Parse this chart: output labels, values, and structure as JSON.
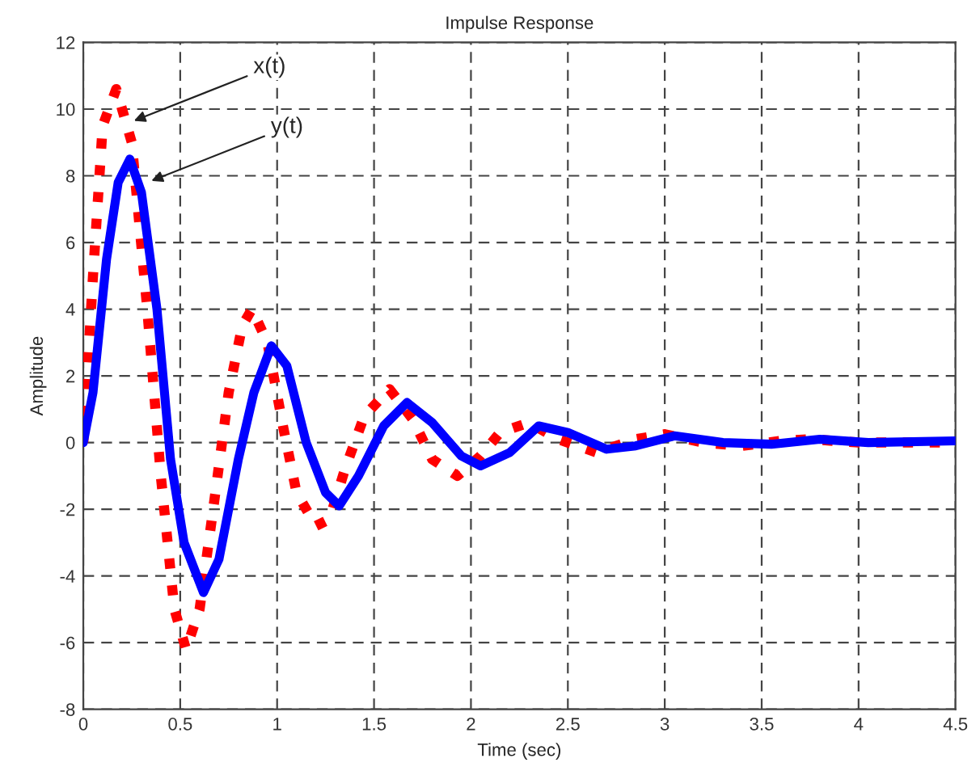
{
  "chart_data": {
    "type": "line",
    "title": "Impulse Response",
    "xlabel": "Time (sec)",
    "ylabel": "Amplitude",
    "xlim": [
      0,
      4.5
    ],
    "ylim": [
      -8,
      12
    ],
    "xticks": [
      0,
      0.5,
      1,
      1.5,
      2,
      2.5,
      3,
      3.5,
      4,
      4.5
    ],
    "yticks": [
      -8,
      -6,
      -4,
      -2,
      0,
      2,
      4,
      6,
      8,
      10,
      12
    ],
    "grid": true,
    "marker": "none",
    "annotations": [
      {
        "text": "x(t)",
        "x": 0.24,
        "y": 9.6
      },
      {
        "text": "y(t)",
        "x": 0.33,
        "y": 7.8
      }
    ],
    "series": [
      {
        "color": "#ff0000",
        "line_style": "dotted",
        "x": [
          0,
          0.05,
          0.1,
          0.17,
          0.25,
          0.33,
          0.4,
          0.47,
          0.53,
          0.6,
          0.67,
          0.75,
          0.82,
          0.87,
          0.95,
          1.03,
          1.1,
          1.2,
          1.27,
          1.35,
          1.45,
          1.58,
          1.7,
          1.8,
          1.93,
          2.05,
          2.15,
          2.3,
          2.45,
          2.65,
          2.85,
          3.0,
          3.2,
          3.4,
          3.6,
          3.75,
          4.0,
          4.25,
          4.5
        ],
        "values": [
          0,
          5,
          9.5,
          10.6,
          9,
          4,
          -1,
          -5,
          -6.2,
          -5,
          -2,
          1.5,
          3.5,
          4.0,
          3,
          0.5,
          -1.5,
          -2.5,
          -2.3,
          -0.8,
          0.8,
          1.6,
          0.7,
          -0.5,
          -1.0,
          -0.4,
          0.3,
          0.6,
          0.1,
          -0.3,
          0.1,
          0.25,
          0.0,
          -0.1,
          0.05,
          0.1,
          0.0,
          0.0,
          0.0
        ]
      },
      {
        "color": "#0000ff",
        "line_style": "solid",
        "x": [
          0,
          0.05,
          0.12,
          0.18,
          0.24,
          0.3,
          0.38,
          0.45,
          0.52,
          0.62,
          0.7,
          0.8,
          0.88,
          0.97,
          1.05,
          1.15,
          1.25,
          1.32,
          1.42,
          1.55,
          1.67,
          1.8,
          1.95,
          2.05,
          2.2,
          2.35,
          2.5,
          2.7,
          2.85,
          3.05,
          3.3,
          3.55,
          3.8,
          4.05,
          4.5
        ],
        "values": [
          0,
          1.5,
          5.5,
          7.8,
          8.5,
          7.5,
          4,
          -0.5,
          -3,
          -4.5,
          -3.5,
          -0.5,
          1.5,
          2.9,
          2.3,
          0,
          -1.5,
          -1.9,
          -1.0,
          0.5,
          1.2,
          0.6,
          -0.4,
          -0.7,
          -0.3,
          0.5,
          0.3,
          -0.2,
          -0.1,
          0.2,
          0.0,
          -0.05,
          0.1,
          0.0,
          0.05
        ]
      }
    ]
  }
}
